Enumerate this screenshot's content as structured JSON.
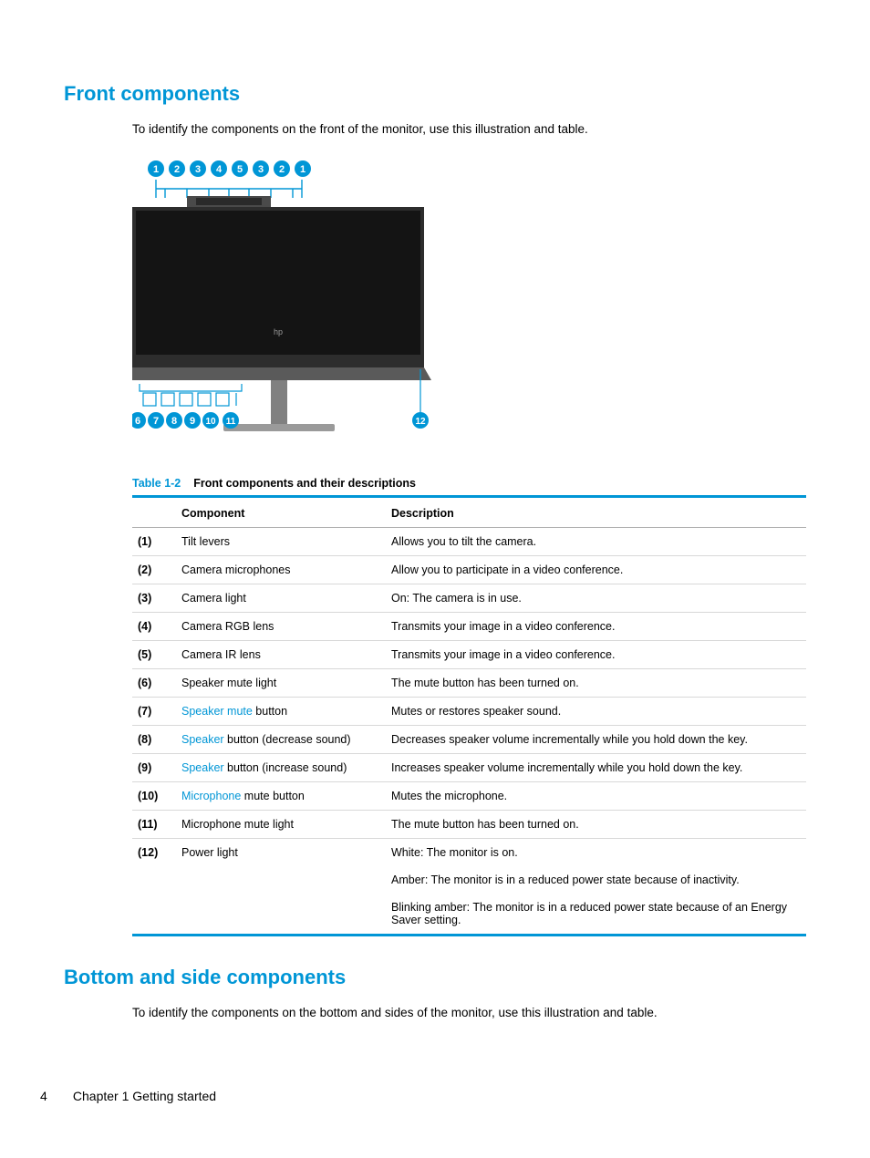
{
  "colors": {
    "accent": "#0096d6",
    "text": "#000000",
    "rule": "#b0b0b0",
    "row_rule": "#d8d8d8",
    "monitor_dark": "#363636",
    "monitor_black": "#141414",
    "monitor_gray": "#737373",
    "bg": "#ffffff"
  },
  "section1": {
    "heading": "Front components",
    "intro": "To identify the components on the front of the monitor, use this illustration and table."
  },
  "figure": {
    "top_callouts": [
      1,
      2,
      3,
      4,
      5,
      3,
      2,
      1
    ],
    "bottom_callouts": [
      6,
      7,
      8,
      9,
      10,
      11,
      12
    ],
    "callout_bg": "#0096d6",
    "callout_text": "#ffffff",
    "callout_radius": 9
  },
  "table": {
    "caption_num": "Table 1-2",
    "caption_title": "Front components and their descriptions",
    "head": {
      "c1": "Component",
      "c2": "Description"
    },
    "rows": [
      {
        "n": "(1)",
        "comp_plain": "Tilt levers",
        "desc": "Allows you to tilt the camera."
      },
      {
        "n": "(2)",
        "comp_plain": "Camera microphones",
        "desc": "Allow you to participate in a video conference."
      },
      {
        "n": "(3)",
        "comp_plain": "Camera light",
        "desc": "On: The camera is in use."
      },
      {
        "n": "(4)",
        "comp_plain": "Camera RGB lens",
        "desc": "Transmits your image in a video conference."
      },
      {
        "n": "(5)",
        "comp_plain": "Camera IR lens",
        "desc": "Transmits your image in a video conference."
      },
      {
        "n": "(6)",
        "comp_plain": "Speaker mute light",
        "desc": "The mute button has been turned on."
      },
      {
        "n": "(7)",
        "comp_link": "Speaker mute",
        "comp_after": " button",
        "desc": "Mutes or restores speaker sound."
      },
      {
        "n": "(8)",
        "comp_link": "Speaker",
        "comp_after": " button (decrease sound)",
        "desc": "Decreases speaker volume incrementally while you hold down the key."
      },
      {
        "n": "(9)",
        "comp_link": "Speaker",
        "comp_after": " button (increase sound)",
        "desc": "Increases speaker volume incrementally while you hold down the key."
      },
      {
        "n": "(10)",
        "comp_link": "Microphone",
        "comp_after": " mute button",
        "desc": "Mutes the microphone."
      },
      {
        "n": "(11)",
        "comp_plain": "Microphone mute light",
        "desc": "The mute button has been turned on."
      },
      {
        "n": "(12)",
        "comp_plain": "Power light",
        "desc": "White: The monitor is on.",
        "desc2": "Amber: The monitor is in a reduced power state because of inactivity.",
        "desc3": "Blinking amber: The monitor is in a reduced power state because of an Energy Saver setting."
      }
    ]
  },
  "section2": {
    "heading": "Bottom and side components",
    "intro": "To identify the components on the bottom and sides of the monitor, use this illustration and table."
  },
  "footer": {
    "page": "4",
    "chapter": "Chapter 1  Getting started"
  }
}
